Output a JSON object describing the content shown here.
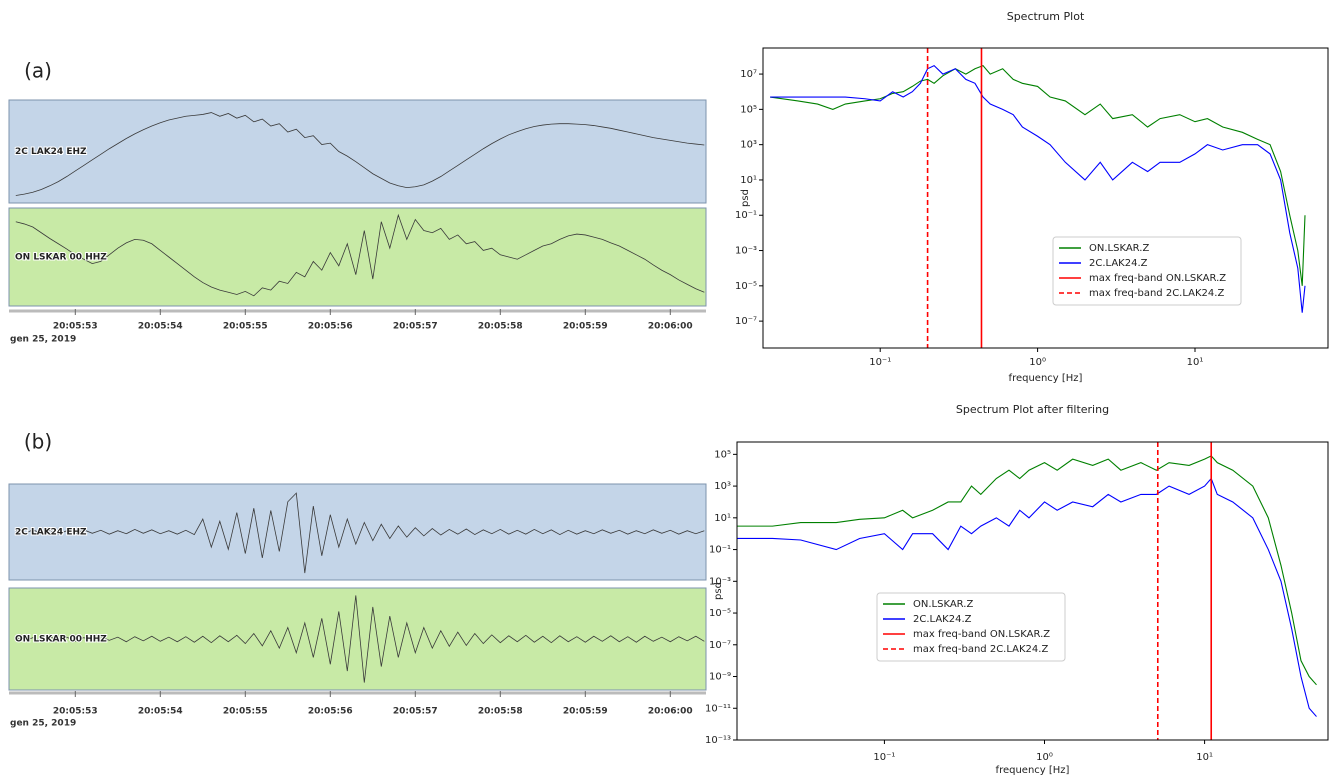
{
  "chart_data": [
    {
      "type": "waveform",
      "panel_label": "(a)",
      "date": "gen 25, 2019",
      "xlim": [
        52.22,
        60.42
      ],
      "ylim": [
        -100,
        100
      ],
      "xticks": [
        {
          "value": 53,
          "label": "20:05:53"
        },
        {
          "value": 54,
          "label": "20:05:54"
        },
        {
          "value": 55,
          "label": "20:05:55"
        },
        {
          "value": 56,
          "label": "20:05:56"
        },
        {
          "value": 57,
          "label": "20:05:57"
        },
        {
          "value": 58,
          "label": "20:05:58"
        },
        {
          "value": 59,
          "label": "20:05:59"
        },
        {
          "value": 60,
          "label": "20:06:00"
        }
      ],
      "x": [
        52.3,
        52.4,
        52.5,
        52.6,
        52.7,
        52.8,
        52.9,
        53.0,
        53.1,
        53.2,
        53.3,
        53.4,
        53.5,
        53.6,
        53.7,
        53.8,
        53.9,
        54.0,
        54.1,
        54.2,
        54.3,
        54.4,
        54.5,
        54.6,
        54.7,
        54.8,
        54.9,
        55.0,
        55.1,
        55.2,
        55.3,
        55.4,
        55.5,
        55.6,
        55.7,
        55.8,
        55.9,
        56.0,
        56.1,
        56.2,
        56.3,
        56.4,
        56.5,
        56.6,
        56.7,
        56.8,
        56.9,
        57.0,
        57.1,
        57.2,
        57.3,
        57.4,
        57.5,
        57.6,
        57.7,
        57.8,
        57.9,
        58.0,
        58.1,
        58.2,
        58.3,
        58.4,
        58.5,
        58.6,
        58.7,
        58.8,
        58.9,
        59.0,
        59.1,
        59.2,
        59.3,
        59.4,
        59.5,
        59.6,
        59.7,
        59.8,
        59.9,
        60.0,
        60.1,
        60.2,
        60.3,
        60.4
      ],
      "series": [
        {
          "name": "2C LAK24  EHZ",
          "color": "#3a3a3a",
          "band_color": "#c4d5e8",
          "values": [
            -95,
            -92,
            -88,
            -82,
            -74,
            -65,
            -54,
            -42,
            -30,
            -18,
            -6,
            6,
            17,
            28,
            38,
            47,
            55,
            62,
            68,
            72,
            76,
            78,
            80,
            84,
            76,
            82,
            72,
            78,
            64,
            70,
            55,
            60,
            42,
            48,
            30,
            34,
            15,
            18,
            0,
            -10,
            -22,
            -35,
            -48,
            -58,
            -68,
            -74,
            -78,
            -76,
            -72,
            -64,
            -54,
            -42,
            -30,
            -18,
            -6,
            6,
            17,
            27,
            36,
            43,
            49,
            54,
            57,
            59,
            60,
            60,
            59,
            58,
            56,
            53,
            50,
            46,
            42,
            38,
            34,
            30,
            27,
            24,
            21,
            18,
            16,
            14
          ]
        },
        {
          "name": "ON LSKAR 00 HHZ",
          "color": "#3a3a3a",
          "band_color": "#c8eaa6",
          "values": [
            80,
            75,
            68,
            55,
            42,
            30,
            18,
            5,
            -5,
            -15,
            -10,
            5,
            20,
            32,
            40,
            38,
            30,
            15,
            0,
            -15,
            -30,
            -45,
            -58,
            -68,
            -75,
            -80,
            -85,
            -78,
            -88,
            -70,
            -75,
            -55,
            -60,
            -35,
            -45,
            -10,
            -30,
            10,
            -20,
            30,
            -40,
            60,
            -50,
            80,
            20,
            95,
            40,
            85,
            60,
            55,
            65,
            40,
            50,
            30,
            35,
            15,
            20,
            5,
            0,
            -5,
            5,
            15,
            25,
            30,
            40,
            48,
            52,
            50,
            45,
            40,
            32,
            25,
            15,
            5,
            -5,
            -18,
            -30,
            -40,
            -52,
            -62,
            -72,
            -80
          ]
        }
      ]
    },
    {
      "type": "line",
      "title": "Spectrum Plot",
      "xlabel": "frequency [Hz]",
      "ylabel": "psd",
      "xlog": true,
      "ylog": true,
      "xlim": [
        0.018,
        70
      ],
      "ylim": [
        3e-09,
        300000000.0
      ],
      "xticks": [
        {
          "value": 0.1,
          "label": "10⁻¹"
        },
        {
          "value": 1,
          "label": "10⁰"
        },
        {
          "value": 10,
          "label": "10¹"
        }
      ],
      "yticks": [
        {
          "value": 10000000.0,
          "label": "10⁷"
        },
        {
          "value": 100000.0,
          "label": "10⁵"
        },
        {
          "value": 1000.0,
          "label": "10³"
        },
        {
          "value": 10,
          "label": "10¹"
        },
        {
          "value": 0.1,
          "label": "10⁻¹"
        },
        {
          "value": 0.001,
          "label": "10⁻³"
        },
        {
          "value": 1e-05,
          "label": "10⁻⁵"
        },
        {
          "value": 1e-07,
          "label": "10⁻⁷"
        }
      ],
      "x": [
        0.02,
        0.03,
        0.04,
        0.05,
        0.06,
        0.08,
        0.1,
        0.12,
        0.14,
        0.16,
        0.18,
        0.2,
        0.22,
        0.25,
        0.3,
        0.35,
        0.4,
        0.45,
        0.5,
        0.6,
        0.7,
        0.8,
        1,
        1.2,
        1.5,
        2,
        2.5,
        3,
        4,
        5,
        6,
        8,
        10,
        12,
        15,
        20,
        25,
        30,
        35,
        40,
        45,
        48,
        50
      ],
      "series": [
        {
          "name": "ON.LSKAR.Z",
          "color": "#008000",
          "values": [
            500000.0,
            300000.0,
            200000.0,
            100000.0,
            200000.0,
            300000.0,
            400000.0,
            800000.0,
            1000000.0,
            2000000.0,
            4000000.0,
            5000000.0,
            3000000.0,
            8000000.0,
            20000000.0,
            10000000.0,
            20000000.0,
            30000000.0,
            10000000.0,
            20000000.0,
            5000000.0,
            3000000.0,
            2000000.0,
            500000.0,
            300000.0,
            50000.0,
            200000.0,
            30000.0,
            50000.0,
            10000.0,
            30000.0,
            50000.0,
            20000.0,
            30000.0,
            10000.0,
            5000.0,
            2000.0,
            1000.0,
            30,
            0.1,
            0.001,
            1e-05,
            0.1
          ]
        },
        {
          "name": "2C.LAK24.Z",
          "color": "#0000ff",
          "values": [
            500000.0,
            500000.0,
            500000.0,
            500000.0,
            500000.0,
            400000.0,
            300000.0,
            1000000.0,
            500000.0,
            1000000.0,
            3000000.0,
            20000000.0,
            30000000.0,
            10000000.0,
            20000000.0,
            5000000.0,
            3000000.0,
            500000.0,
            200000.0,
            100000.0,
            50000.0,
            10000.0,
            3000.0,
            1000.0,
            100,
            10,
            100,
            10,
            100,
            30,
            100,
            100,
            300,
            1000.0,
            500,
            1000.0,
            1000.0,
            300,
            10,
            0.01,
            0.0001,
            3e-07,
            1e-05
          ]
        }
      ],
      "vlines": [
        {
          "name": "max freq-band ON.LSKAR.Z",
          "x": 0.44,
          "color": "#ff0000",
          "style": "solid"
        },
        {
          "name": "max freq-band 2C.LAK24.Z",
          "x": 0.2,
          "color": "#ff0000",
          "style": "dashed"
        }
      ]
    },
    {
      "type": "waveform",
      "panel_label": "(b)",
      "date": "gen 25, 2019",
      "xlim": [
        52.22,
        60.42
      ],
      "ylim": [
        -100,
        100
      ],
      "xticks": [
        {
          "value": 53,
          "label": "20:05:53"
        },
        {
          "value": 54,
          "label": "20:05:54"
        },
        {
          "value": 55,
          "label": "20:05:55"
        },
        {
          "value": 56,
          "label": "20:05:56"
        },
        {
          "value": 57,
          "label": "20:05:57"
        },
        {
          "value": 58,
          "label": "20:05:58"
        },
        {
          "value": 59,
          "label": "20:05:59"
        },
        {
          "value": 60,
          "label": "20:06:00"
        }
      ],
      "x": [
        52.3,
        52.4,
        52.5,
        52.6,
        52.7,
        52.8,
        52.9,
        53.0,
        53.1,
        53.2,
        53.3,
        53.4,
        53.5,
        53.6,
        53.7,
        53.8,
        53.9,
        54.0,
        54.1,
        54.2,
        54.3,
        54.4,
        54.5,
        54.6,
        54.7,
        54.8,
        54.9,
        55.0,
        55.1,
        55.2,
        55.3,
        55.4,
        55.5,
        55.6,
        55.7,
        55.8,
        55.9,
        56.0,
        56.1,
        56.2,
        56.3,
        56.4,
        56.5,
        56.6,
        56.7,
        56.8,
        56.9,
        57.0,
        57.1,
        57.2,
        57.3,
        57.4,
        57.5,
        57.6,
        57.7,
        57.8,
        57.9,
        58.0,
        58.1,
        58.2,
        58.3,
        58.4,
        58.5,
        58.6,
        58.7,
        58.8,
        58.9,
        59.0,
        59.1,
        59.2,
        59.3,
        59.4,
        59.5,
        59.6,
        59.7,
        59.8,
        59.9,
        60.0,
        60.1,
        60.2,
        60.3,
        60.4
      ],
      "series": [
        {
          "name": "2C LAK24  EHZ",
          "color": "#3a3a3a",
          "band_color": "#c4d5e8",
          "values": [
            3,
            -4,
            5,
            -3,
            4,
            -5,
            3,
            -4,
            5,
            -3,
            4,
            -5,
            3,
            -4,
            6,
            -3,
            5,
            -4,
            3,
            -5,
            4,
            -6,
            30,
            -35,
            25,
            -40,
            45,
            -50,
            55,
            -60,
            50,
            -45,
            70,
            90,
            -95,
            60,
            -55,
            40,
            -35,
            30,
            -28,
            22,
            -20,
            18,
            -15,
            14,
            -12,
            10,
            -9,
            8,
            -7,
            6,
            -5,
            7,
            -6,
            5,
            -4,
            6,
            -5,
            4,
            -5,
            6,
            -4,
            5,
            -6,
            4,
            -5,
            3,
            -4,
            5,
            -3,
            4,
            -5,
            3,
            -4,
            5,
            -3,
            4,
            -5,
            3,
            -4,
            3
          ]
        },
        {
          "name": "ON LSKAR 00 HHZ",
          "color": "#3a3a3a",
          "band_color": "#c8eaa6",
          "values": [
            4,
            -5,
            3,
            -4,
            5,
            -3,
            4,
            -5,
            3,
            -4,
            5,
            -3,
            4,
            -6,
            5,
            -4,
            6,
            -5,
            4,
            -6,
            5,
            -7,
            6,
            -8,
            7,
            -6,
            8,
            -10,
            12,
            -15,
            18,
            -20,
            25,
            -30,
            35,
            -40,
            45,
            -55,
            60,
            -70,
            95,
            -95,
            70,
            -60,
            50,
            -40,
            35,
            -30,
            25,
            -20,
            18,
            -16,
            15,
            -14,
            12,
            -10,
            9,
            -8,
            7,
            -6,
            8,
            -7,
            6,
            -8,
            7,
            -6,
            5,
            -7,
            6,
            -5,
            7,
            -6,
            5,
            -7,
            6,
            -5,
            4,
            -6,
            5,
            -4,
            6,
            -5
          ]
        }
      ]
    },
    {
      "type": "line",
      "title": "Spectrum Plot after filtering",
      "xlabel": "frequency [Hz]",
      "ylabel": "psd",
      "xlog": true,
      "ylog": true,
      "xlim": [
        0.012,
        59
      ],
      "ylim": [
        1e-13,
        600000.0
      ],
      "xticks": [
        {
          "value": 0.1,
          "label": "10⁻¹"
        },
        {
          "value": 1,
          "label": "10⁰"
        },
        {
          "value": 10,
          "label": "10¹"
        }
      ],
      "yticks": [
        {
          "value": 100000.0,
          "label": "10⁵"
        },
        {
          "value": 1000.0,
          "label": "10³"
        },
        {
          "value": 10,
          "label": "10¹"
        },
        {
          "value": 0.1,
          "label": "10⁻¹"
        },
        {
          "value": 0.001,
          "label": "10⁻³"
        },
        {
          "value": 1e-05,
          "label": "10⁻⁵"
        },
        {
          "value": 1e-07,
          "label": "10⁻⁷"
        },
        {
          "value": 1e-09,
          "label": "10⁻⁹"
        },
        {
          "value": 1e-11,
          "label": "10⁻¹¹"
        },
        {
          "value": 1e-13,
          "label": "10⁻¹³"
        }
      ],
      "x": [
        0.012,
        0.02,
        0.03,
        0.05,
        0.07,
        0.1,
        0.13,
        0.15,
        0.2,
        0.25,
        0.3,
        0.35,
        0.4,
        0.5,
        0.6,
        0.7,
        0.8,
        1,
        1.2,
        1.5,
        2,
        2.5,
        3,
        4,
        5,
        6,
        8,
        10,
        11,
        12,
        15,
        20,
        25,
        30,
        35,
        40,
        45,
        50
      ],
      "series": [
        {
          "name": "ON.LSKAR.Z",
          "color": "#008000",
          "values": [
            3,
            3,
            5,
            5,
            8,
            10,
            30,
            10,
            30,
            100,
            100,
            1000.0,
            300,
            3000.0,
            10000.0,
            3000.0,
            10000.0,
            30000.0,
            10000.0,
            50000.0,
            20000.0,
            50000.0,
            10000.0,
            30000.0,
            10000.0,
            30000.0,
            20000.0,
            50000.0,
            80000.0,
            30000.0,
            10000.0,
            1000.0,
            10,
            0.01,
            1e-05,
            1e-08,
            1e-09,
            3e-10
          ]
        },
        {
          "name": "2C.LAK24.Z",
          "color": "#0000ff",
          "values": [
            0.5,
            0.5,
            0.4,
            0.1,
            0.5,
            1,
            0.1,
            1,
            1,
            0.1,
            3,
            1,
            3,
            10,
            3,
            30,
            10,
            100,
            30,
            100,
            50,
            300,
            100,
            300,
            300,
            1000.0,
            300,
            1000.0,
            3000.0,
            300,
            100,
            10,
            0.1,
            0.001,
            1e-06,
            1e-09,
            1e-11,
            3e-12
          ]
        }
      ],
      "vlines": [
        {
          "name": "max freq-band ON.LSKAR.Z",
          "x": 11,
          "color": "#ff0000",
          "style": "solid"
        },
        {
          "name": "max freq-band 2C.LAK24.Z",
          "x": 5.1,
          "color": "#ff0000",
          "style": "dashed"
        }
      ]
    }
  ]
}
